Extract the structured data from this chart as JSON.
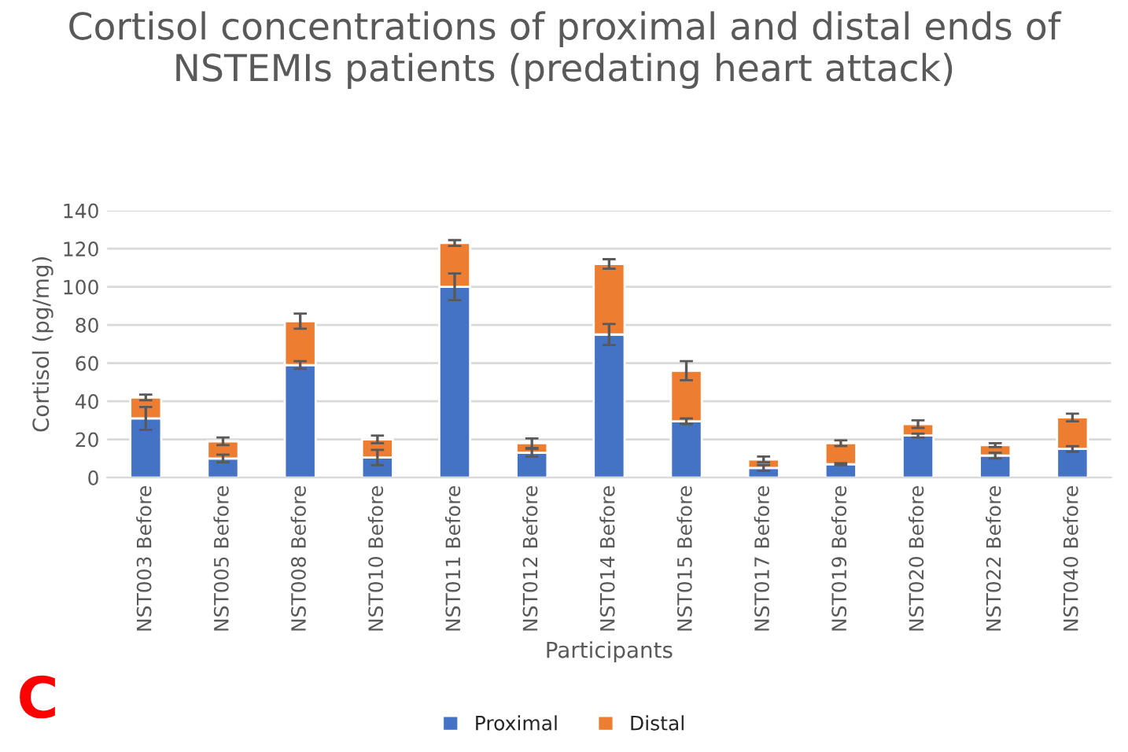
{
  "chart_data": {
    "type": "bar",
    "title": "Cortisol concentrations of proximal and distal ends of NSTEMIs patients (predating heart attack)",
    "xlabel": "Participants",
    "ylabel": "Cortisol (pg/mg)",
    "categories": [
      "NST003 Before",
      "NST005 Before",
      "NST008 Before",
      "NST010 Before",
      "NST011 Before",
      "NST012 Before",
      "NST014 Before",
      "NST015 Before",
      "NST017 Before",
      "NST019 Before",
      "NST020 Before",
      "NST022 Before",
      "NST040 Before"
    ],
    "stacked": true,
    "series": [
      {
        "name": "Proximal",
        "color": "#4472c4",
        "values": [
          31,
          10,
          59,
          10.5,
          100,
          13,
          75,
          29.5,
          5,
          7,
          22,
          11.5,
          15
        ],
        "errors": [
          6,
          2,
          2,
          4,
          7,
          2,
          5.5,
          1.5,
          1.5,
          0.5,
          1,
          1.5,
          1.5
        ]
      },
      {
        "name": "Distal",
        "color": "#ed7d31",
        "values": [
          11,
          9,
          23,
          9.5,
          23,
          5,
          37,
          26.5,
          4.5,
          11,
          6,
          5.5,
          16.5
        ],
        "errors": [
          1.5,
          2,
          4,
          2,
          1.5,
          2.5,
          2.5,
          5,
          1.5,
          1.5,
          2,
          1,
          2
        ]
      }
    ],
    "ylim": [
      0,
      140
    ],
    "yticks": [
      0,
      20,
      40,
      60,
      80,
      100,
      120,
      140
    ],
    "grid": "y",
    "legend": "bottom",
    "annotations": [
      "C"
    ]
  }
}
